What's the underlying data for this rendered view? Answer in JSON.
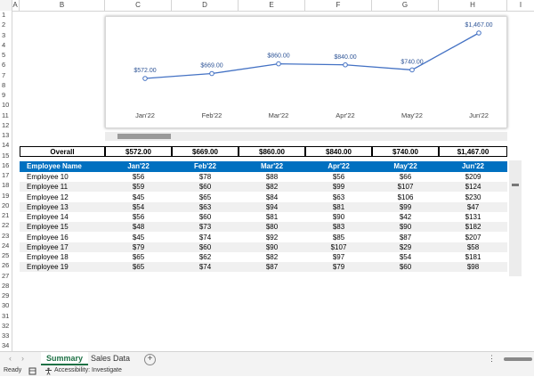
{
  "columns": [
    "A",
    "B",
    "C",
    "D",
    "E",
    "F",
    "G",
    "H",
    "I"
  ],
  "rows": [
    "1",
    "2",
    "3",
    "4",
    "5",
    "6",
    "7",
    "8",
    "9",
    "10",
    "11",
    "12",
    "13",
    "14",
    "15",
    "16",
    "17",
    "18",
    "19",
    "20",
    "21",
    "22",
    "23",
    "24",
    "25",
    "26",
    "27",
    "28",
    "29",
    "30",
    "31",
    "32",
    "33",
    "34"
  ],
  "chart_data": {
    "type": "line",
    "categories": [
      "Jan'22",
      "Feb'22",
      "Mar'22",
      "Apr'22",
      "May'22",
      "Jun'22"
    ],
    "values": [
      572,
      669,
      860,
      840,
      740,
      1467
    ],
    "data_labels": [
      "$572.00",
      "$669.00",
      "$860.00",
      "$840.00",
      "$740.00",
      "$1,467.00"
    ],
    "line_color": "#4472c4",
    "grid": false,
    "legend": "none"
  },
  "overall": {
    "label": "Overall",
    "values": [
      "$572.00",
      "$669.00",
      "$860.00",
      "$840.00",
      "$740.00",
      "$1,467.00"
    ]
  },
  "table": {
    "header_color": "#0070c0",
    "headers": [
      "Employee Name",
      "Jan'22",
      "Feb'22",
      "Mar'22",
      "Apr'22",
      "May'22",
      "Jun'22"
    ],
    "rows": [
      [
        "Employee 10",
        "$56",
        "$78",
        "$88",
        "$56",
        "$66",
        "$209"
      ],
      [
        "Employee 11",
        "$59",
        "$60",
        "$82",
        "$99",
        "$107",
        "$124"
      ],
      [
        "Employee 12",
        "$45",
        "$65",
        "$84",
        "$63",
        "$106",
        "$230"
      ],
      [
        "Employee 13",
        "$54",
        "$63",
        "$94",
        "$81",
        "$99",
        "$47"
      ],
      [
        "Employee 14",
        "$56",
        "$60",
        "$81",
        "$90",
        "$42",
        "$131"
      ],
      [
        "Employee 15",
        "$48",
        "$73",
        "$80",
        "$83",
        "$90",
        "$182"
      ],
      [
        "Employee 16",
        "$45",
        "$74",
        "$92",
        "$85",
        "$87",
        "$207"
      ],
      [
        "Employee 17",
        "$79",
        "$60",
        "$90",
        "$107",
        "$29",
        "$58"
      ],
      [
        "Employee 18",
        "$65",
        "$62",
        "$82",
        "$97",
        "$54",
        "$181"
      ],
      [
        "Employee 19",
        "$65",
        "$74",
        "$87",
        "$79",
        "$60",
        "$98"
      ]
    ]
  },
  "tabs": {
    "active": "Summary",
    "inactive": "Sales Data",
    "add": "+",
    "nav_prev": "‹",
    "nav_next": "›",
    "menu": "⋮"
  },
  "status": {
    "ready": "Ready",
    "accessibility": "Accessibility: Investigate"
  },
  "icons": {
    "sheet_status": "page-icon",
    "accessibility": "accessibility-icon"
  }
}
